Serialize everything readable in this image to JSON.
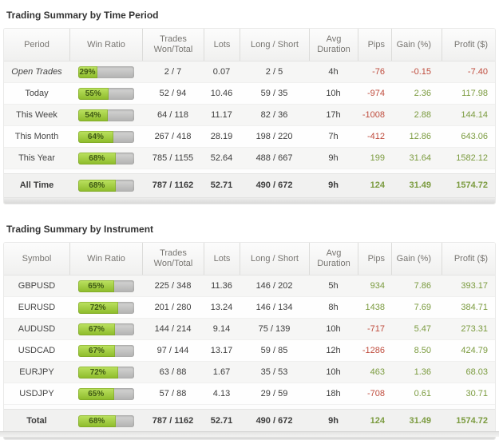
{
  "colors": {
    "positive": "#7b9b3f",
    "negative": "#bf4b3c",
    "bar_green_top": "#bce261",
    "bar_green_bottom": "#8cba29",
    "bar_track": "#bdbdbc"
  },
  "tables": [
    {
      "title": "Trading Summary by Time Period",
      "columns": [
        "Period",
        "Win Ratio",
        "Trades Won/Total",
        "Lots",
        "Long / Short",
        "Avg Duration",
        "Pips",
        "Gain (%)",
        "Profit ($)"
      ],
      "rows": [
        {
          "label": "Open Trades",
          "italic": true,
          "win_pct": 29,
          "win_label": "29%",
          "trades": "2 / 7",
          "lots": "0.07",
          "long_short": "2 / 5",
          "duration": "4h",
          "pips": "-76",
          "gain": "-0.15",
          "profit": "-7.40"
        },
        {
          "label": "Today",
          "italic": false,
          "win_pct": 55,
          "win_label": "55%",
          "trades": "52 / 94",
          "lots": "10.46",
          "long_short": "59 / 35",
          "duration": "10h",
          "pips": "-974",
          "gain": "2.36",
          "profit": "117.98"
        },
        {
          "label": "This Week",
          "italic": false,
          "win_pct": 54,
          "win_label": "54%",
          "trades": "64 / 118",
          "lots": "11.17",
          "long_short": "82 / 36",
          "duration": "17h",
          "pips": "-1008",
          "gain": "2.88",
          "profit": "144.14"
        },
        {
          "label": "This Month",
          "italic": false,
          "win_pct": 64,
          "win_label": "64%",
          "trades": "267 / 418",
          "lots": "28.19",
          "long_short": "198 / 220",
          "duration": "7h",
          "pips": "-412",
          "gain": "12.86",
          "profit": "643.06"
        },
        {
          "label": "This Year",
          "italic": false,
          "win_pct": 68,
          "win_label": "68%",
          "trades": "785 / 1155",
          "lots": "52.64",
          "long_short": "488 / 667",
          "duration": "9h",
          "pips": "199",
          "gain": "31.64",
          "profit": "1582.12"
        }
      ],
      "total": {
        "label": "All Time",
        "win_pct": 68,
        "win_label": "68%",
        "trades": "787 / 1162",
        "lots": "52.71",
        "long_short": "490 / 672",
        "duration": "9h",
        "pips": "124",
        "gain": "31.49",
        "profit": "1574.72"
      }
    },
    {
      "title": "Trading Summary by Instrument",
      "columns": [
        "Symbol",
        "Win Ratio",
        "Trades Won/Total",
        "Lots",
        "Long / Short",
        "Avg Duration",
        "Pips",
        "Gain (%)",
        "Profit ($)"
      ],
      "rows": [
        {
          "label": "GBPUSD",
          "italic": false,
          "win_pct": 65,
          "win_label": "65%",
          "trades": "225 / 348",
          "lots": "11.36",
          "long_short": "146 / 202",
          "duration": "5h",
          "pips": "934",
          "gain": "7.86",
          "profit": "393.17"
        },
        {
          "label": "EURUSD",
          "italic": false,
          "win_pct": 72,
          "win_label": "72%",
          "trades": "201 / 280",
          "lots": "13.24",
          "long_short": "146 / 134",
          "duration": "8h",
          "pips": "1438",
          "gain": "7.69",
          "profit": "384.71"
        },
        {
          "label": "AUDUSD",
          "italic": false,
          "win_pct": 67,
          "win_label": "67%",
          "trades": "144 / 214",
          "lots": "9.14",
          "long_short": "75 / 139",
          "duration": "10h",
          "pips": "-717",
          "gain": "5.47",
          "profit": "273.31"
        },
        {
          "label": "USDCAD",
          "italic": false,
          "win_pct": 67,
          "win_label": "67%",
          "trades": "97 / 144",
          "lots": "13.17",
          "long_short": "59 / 85",
          "duration": "12h",
          "pips": "-1286",
          "gain": "8.50",
          "profit": "424.79"
        },
        {
          "label": "EURJPY",
          "italic": false,
          "win_pct": 72,
          "win_label": "72%",
          "trades": "63 / 88",
          "lots": "1.67",
          "long_short": "35 / 53",
          "duration": "10h",
          "pips": "463",
          "gain": "1.36",
          "profit": "68.03"
        },
        {
          "label": "USDJPY",
          "italic": false,
          "win_pct": 65,
          "win_label": "65%",
          "trades": "57 / 88",
          "lots": "4.13",
          "long_short": "29 / 59",
          "duration": "18h",
          "pips": "-708",
          "gain": "0.61",
          "profit": "30.71"
        }
      ],
      "total": {
        "label": "Total",
        "win_pct": 68,
        "win_label": "68%",
        "trades": "787 / 1162",
        "lots": "52.71",
        "long_short": "490 / 672",
        "duration": "9h",
        "pips": "124",
        "gain": "31.49",
        "profit": "1574.72"
      }
    }
  ]
}
